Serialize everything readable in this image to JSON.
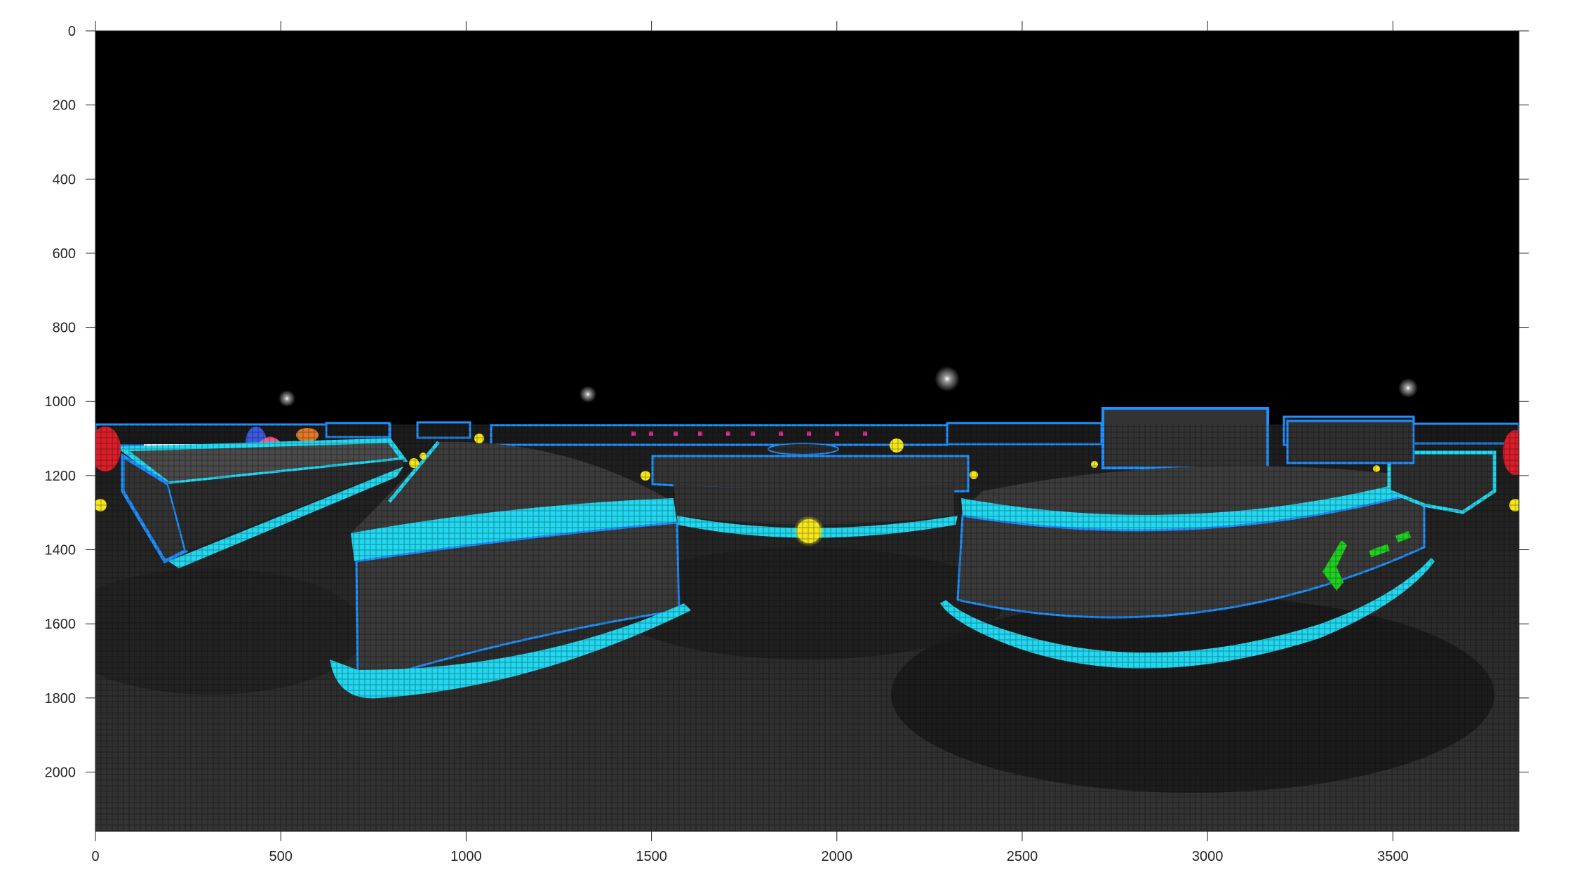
{
  "chart_data": {
    "type": "image",
    "title": "",
    "xlabel": "",
    "ylabel": "",
    "xlim": [
      0,
      3840
    ],
    "ylim": [
      0,
      2160
    ],
    "y_direction": "reverse",
    "grid": false,
    "xticks": [
      0,
      500,
      1000,
      1500,
      2000,
      2500,
      3000,
      3500
    ],
    "yticks": [
      0,
      200,
      400,
      600,
      800,
      1000,
      1200,
      1400,
      1600,
      1800,
      2000
    ],
    "image": {
      "description": "360 equirectangular render of a neon arena",
      "colors": {
        "sky": "#000000",
        "floor": "#2a2a2a",
        "neon_cyan": "#22d8f0",
        "neon_blue": "#1e90ff",
        "platform": "#3a3a3a",
        "yellow_orb": "#f5e61a",
        "green_arrow": "#1fd11f",
        "red_object": "#d81e2a",
        "pink_dome": "#e8608c",
        "white_light": "#ffffff"
      }
    }
  }
}
